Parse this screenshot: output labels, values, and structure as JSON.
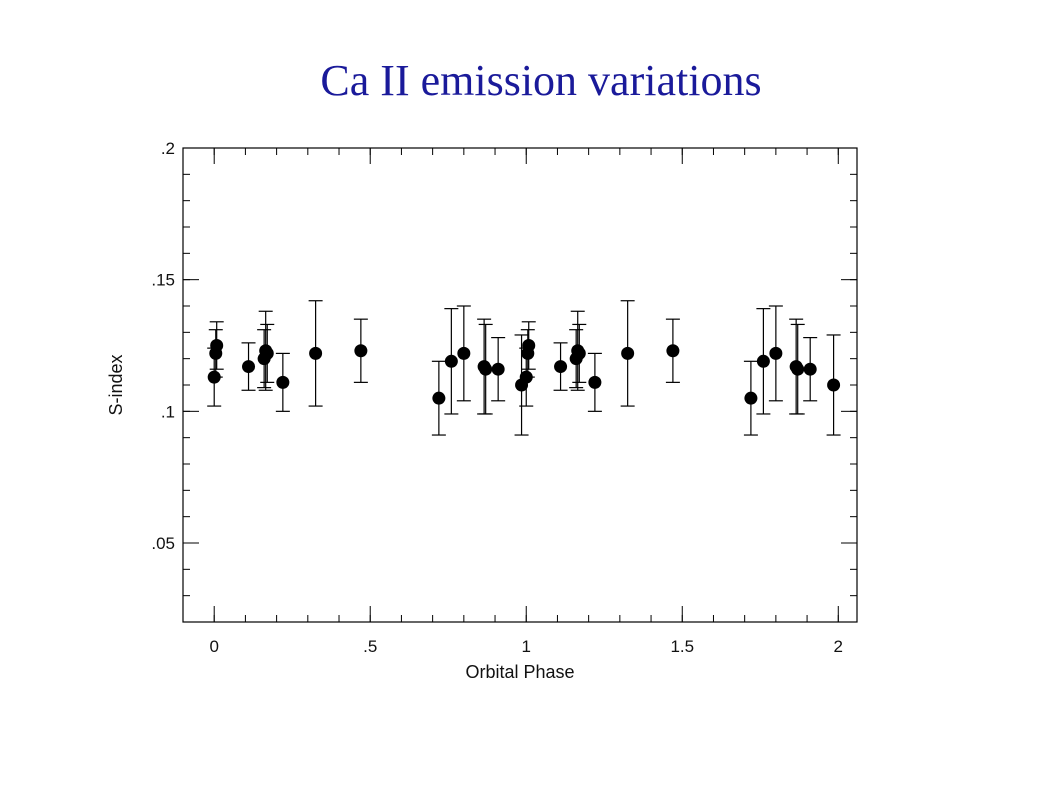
{
  "page": {
    "title": "Ca II emission variations"
  },
  "chart_data": {
    "type": "scatter",
    "title": "Ca II emission variations",
    "xlabel": "Orbital Phase",
    "ylabel": "S-index",
    "xlim": [
      -0.1,
      2.06
    ],
    "ylim": [
      0.02,
      0.2
    ],
    "xticks": [
      0,
      0.5,
      1,
      1.5,
      2
    ],
    "xtick_labels": [
      "0",
      ".5",
      "1",
      "1.5",
      "2"
    ],
    "yticks": [
      0.05,
      0.1,
      0.15,
      0.2
    ],
    "ytick_labels": [
      ".05",
      ".1",
      ".15",
      ".2"
    ],
    "grid": false,
    "marker_color": "#000000",
    "points": [
      {
        "x": 0.0,
        "y": 0.113,
        "err": 0.011
      },
      {
        "x": 0.005,
        "y": 0.122,
        "err": 0.009
      },
      {
        "x": 0.008,
        "y": 0.125,
        "err": 0.009
      },
      {
        "x": 0.11,
        "y": 0.117,
        "err": 0.009
      },
      {
        "x": 0.16,
        "y": 0.12,
        "err": 0.011
      },
      {
        "x": 0.165,
        "y": 0.123,
        "err": 0.015
      },
      {
        "x": 0.17,
        "y": 0.122,
        "err": 0.011
      },
      {
        "x": 0.22,
        "y": 0.111,
        "err": 0.011
      },
      {
        "x": 0.325,
        "y": 0.122,
        "err": 0.02
      },
      {
        "x": 0.47,
        "y": 0.123,
        "err": 0.012
      },
      {
        "x": 0.72,
        "y": 0.105,
        "err": 0.014
      },
      {
        "x": 0.76,
        "y": 0.119,
        "err": 0.02
      },
      {
        "x": 0.8,
        "y": 0.122,
        "err": 0.018
      },
      {
        "x": 0.865,
        "y": 0.117,
        "err": 0.018
      },
      {
        "x": 0.87,
        "y": 0.116,
        "err": 0.017
      },
      {
        "x": 0.91,
        "y": 0.116,
        "err": 0.012
      },
      {
        "x": 0.985,
        "y": 0.11,
        "err": 0.019
      },
      {
        "x": 1.0,
        "y": 0.113,
        "err": 0.011
      },
      {
        "x": 1.005,
        "y": 0.122,
        "err": 0.009
      },
      {
        "x": 1.008,
        "y": 0.125,
        "err": 0.009
      },
      {
        "x": 1.11,
        "y": 0.117,
        "err": 0.009
      },
      {
        "x": 1.16,
        "y": 0.12,
        "err": 0.011
      },
      {
        "x": 1.165,
        "y": 0.123,
        "err": 0.015
      },
      {
        "x": 1.17,
        "y": 0.122,
        "err": 0.011
      },
      {
        "x": 1.22,
        "y": 0.111,
        "err": 0.011
      },
      {
        "x": 1.325,
        "y": 0.122,
        "err": 0.02
      },
      {
        "x": 1.47,
        "y": 0.123,
        "err": 0.012
      },
      {
        "x": 1.72,
        "y": 0.105,
        "err": 0.014
      },
      {
        "x": 1.76,
        "y": 0.119,
        "err": 0.02
      },
      {
        "x": 1.8,
        "y": 0.122,
        "err": 0.018
      },
      {
        "x": 1.865,
        "y": 0.117,
        "err": 0.018
      },
      {
        "x": 1.87,
        "y": 0.116,
        "err": 0.017
      },
      {
        "x": 1.91,
        "y": 0.116,
        "err": 0.012
      },
      {
        "x": 1.985,
        "y": 0.11,
        "err": 0.019
      }
    ]
  }
}
